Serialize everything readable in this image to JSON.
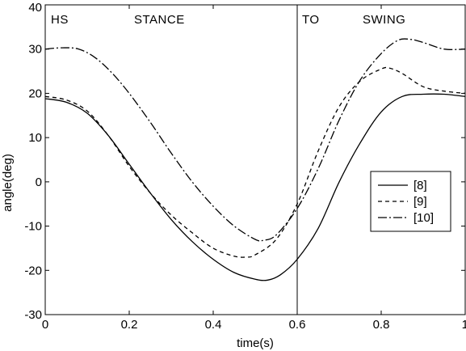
{
  "chart_data": {
    "type": "line",
    "xlabel": "time(s)",
    "ylabel": "angle(deg)",
    "xlim": [
      0,
      1
    ],
    "ylim": [
      -30,
      40
    ],
    "xticks": [
      0,
      0.2,
      0.4,
      0.6,
      0.8,
      1
    ],
    "xtick_labels": [
      "0",
      "0.2",
      "0.4",
      "0.6",
      "0.8",
      "1"
    ],
    "yticks": [
      -30,
      -20,
      -10,
      0,
      10,
      20,
      30,
      40
    ],
    "ytick_labels": [
      "-30",
      "-20",
      "-10",
      "0",
      "10",
      "20",
      "30",
      "40"
    ],
    "grid": false,
    "legend_position": "right",
    "annotations": {
      "hs": "HS",
      "stance": "STANCE",
      "to": "TO",
      "swing": "SWING"
    },
    "toe_off_x": 0.6,
    "series": [
      {
        "name": "[8]",
        "style": "solid",
        "x": [
          0,
          0.05,
          0.1,
          0.15,
          0.2,
          0.25,
          0.3,
          0.35,
          0.4,
          0.45,
          0.5,
          0.53,
          0.56,
          0.6,
          0.65,
          0.7,
          0.75,
          0.8,
          0.85,
          0.9,
          0.95,
          1.0
        ],
        "values": [
          18.8,
          18,
          15.5,
          10.5,
          4,
          -2.5,
          -8.5,
          -13.5,
          -17.5,
          -20.5,
          -22,
          -22.2,
          -21,
          -17.5,
          -10.5,
          0,
          8.8,
          15.8,
          19.3,
          19.8,
          19.8,
          19.3
        ]
      },
      {
        "name": "[9]",
        "style": "dashed",
        "x": [
          0,
          0.05,
          0.1,
          0.15,
          0.2,
          0.25,
          0.3,
          0.35,
          0.4,
          0.45,
          0.48,
          0.5,
          0.55,
          0.6,
          0.65,
          0.7,
          0.75,
          0.8,
          0.82,
          0.85,
          0.9,
          0.95,
          1.0
        ],
        "values": [
          19.3,
          18.5,
          16,
          10.5,
          3.5,
          -2.5,
          -7.5,
          -11.5,
          -15,
          -16.8,
          -17,
          -16.5,
          -13,
          -5,
          7,
          17,
          22.8,
          25.5,
          25.7,
          24.5,
          21.5,
          20.5,
          20
        ]
      },
      {
        "name": "[10]",
        "style": "dashdot",
        "x": [
          0,
          0.04,
          0.08,
          0.12,
          0.16,
          0.2,
          0.25,
          0.3,
          0.35,
          0.4,
          0.45,
          0.5,
          0.52,
          0.55,
          0.6,
          0.65,
          0.7,
          0.75,
          0.8,
          0.84,
          0.87,
          0.9,
          0.95,
          1.0
        ],
        "values": [
          30,
          30.3,
          30,
          28,
          24.5,
          20,
          13.5,
          6.5,
          0,
          -5.5,
          -10,
          -13,
          -13.2,
          -12,
          -6,
          3,
          14,
          23,
          29,
          32,
          32.2,
          31.5,
          30,
          30
        ]
      }
    ]
  }
}
